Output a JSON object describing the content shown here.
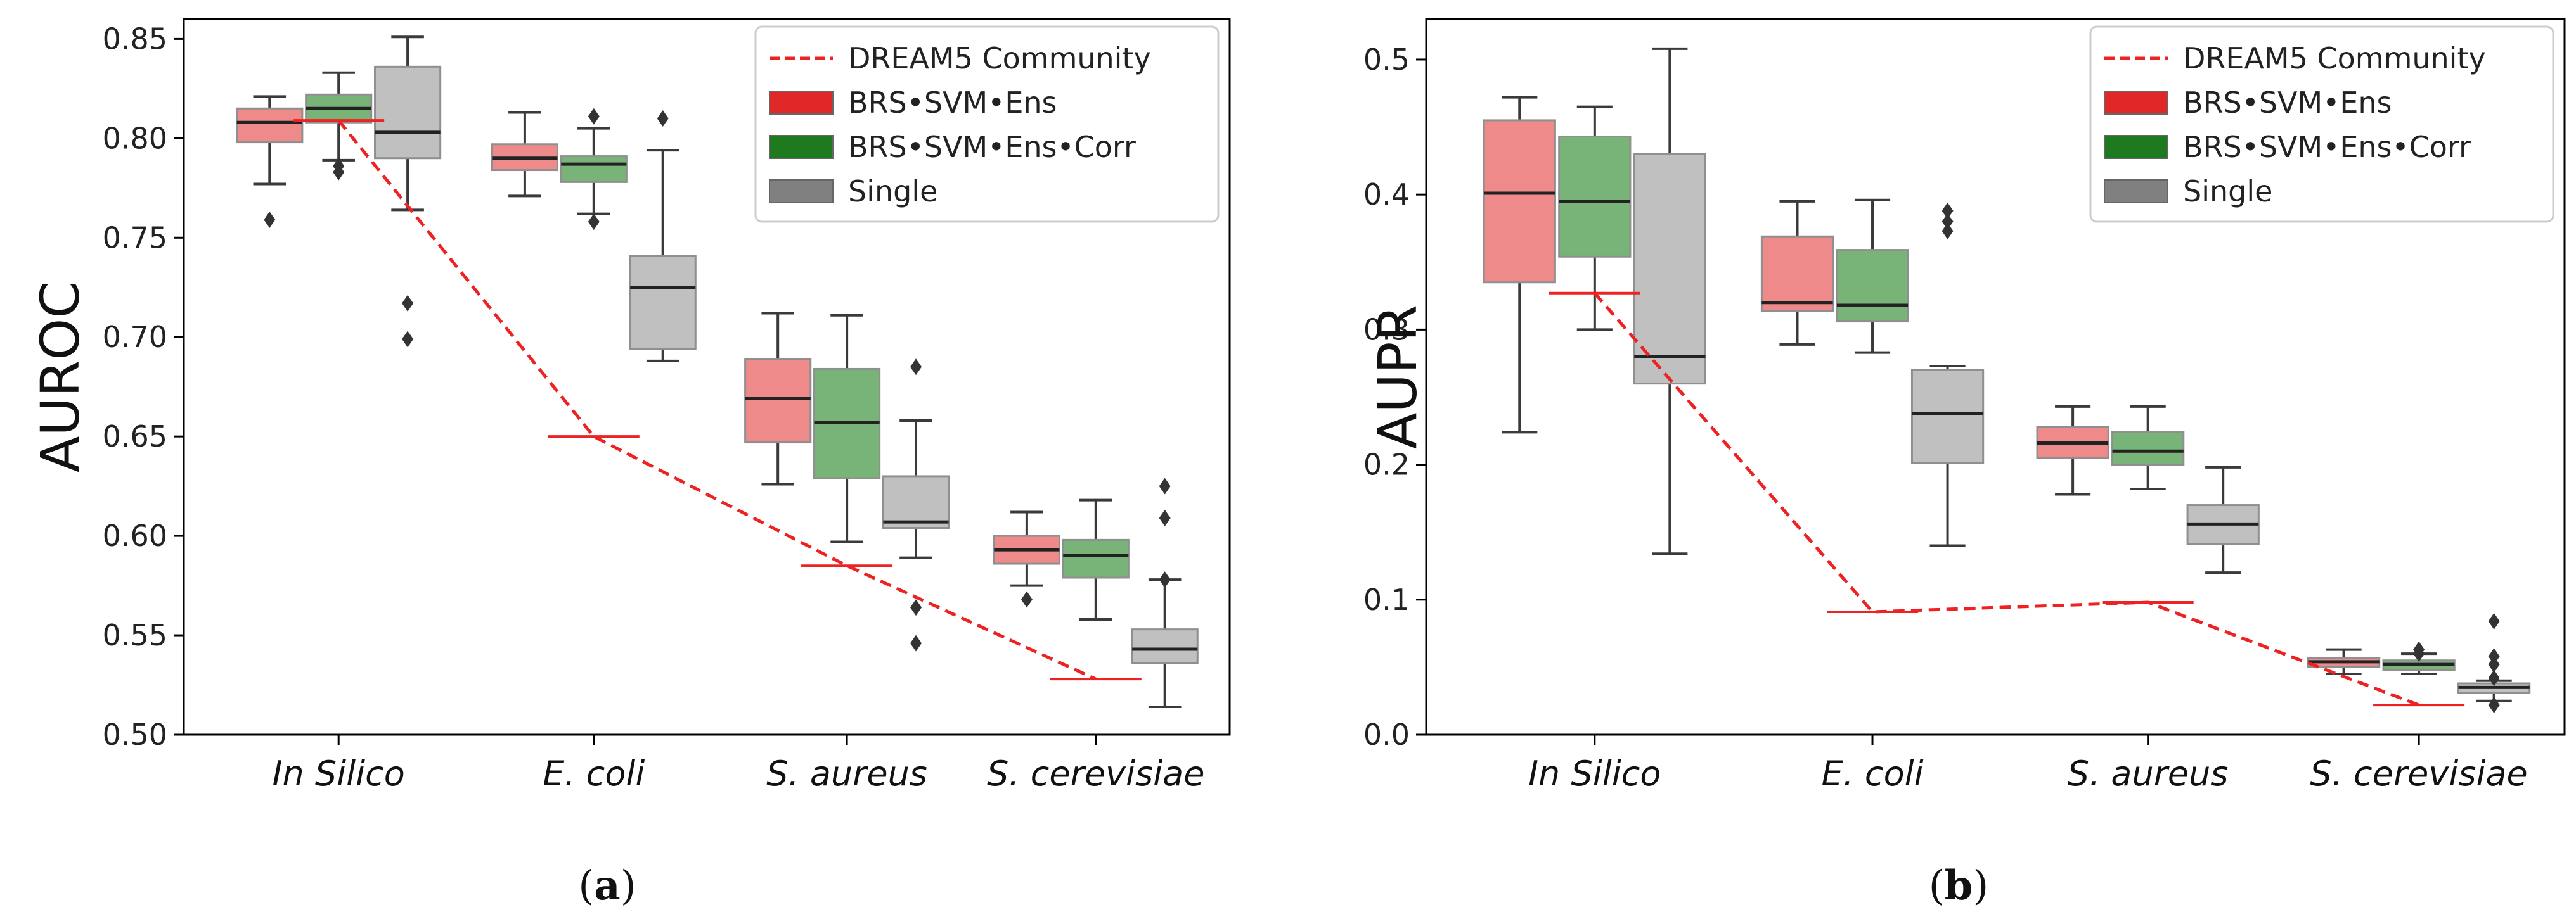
{
  "chart_data": [
    {
      "type": "box",
      "panel_label": "a",
      "title": "",
      "ylabel": "AUROC",
      "xlabel": "",
      "ylim": [
        0.5,
        0.86
      ],
      "yticks": [
        0.5,
        0.55,
        0.6,
        0.65,
        0.7,
        0.75,
        0.8,
        0.85
      ],
      "yticklabels": [
        "0.50",
        "0.55",
        "0.60",
        "0.65",
        "0.70",
        "0.75",
        "0.80",
        "0.85"
      ],
      "categories": [
        "In Silico",
        "E. coli",
        "S. aureus",
        "S. cerevisiae"
      ],
      "legend": {
        "position": "top-right",
        "entries": [
          {
            "name": "DREAM5 Community",
            "type": "dashed-line"
          },
          {
            "name": "BRS•SVM•Ens",
            "type": "patch",
            "color": "#e02828"
          },
          {
            "name": "BRS•SVM•Ens•Corr",
            "type": "patch",
            "color": "#1f7a1f"
          },
          {
            "name": "Single",
            "type": "patch",
            "color": "#808080"
          }
        ]
      },
      "reference": {
        "name": "DREAM5 Community",
        "color": "#ee2222",
        "values": [
          0.809,
          0.65,
          0.585,
          0.528
        ]
      },
      "series": [
        {
          "name": "BRS•SVM•Ens",
          "color": "#ee8a8a",
          "boxes": [
            {
              "q1": 0.798,
              "median": 0.808,
              "q3": 0.815,
              "whislo": 0.777,
              "whishi": 0.821,
              "fliers": [
                0.759
              ]
            },
            {
              "q1": 0.784,
              "median": 0.79,
              "q3": 0.797,
              "whislo": 0.771,
              "whishi": 0.813,
              "fliers": []
            },
            {
              "q1": 0.647,
              "median": 0.669,
              "q3": 0.689,
              "whislo": 0.626,
              "whishi": 0.712,
              "fliers": []
            },
            {
              "q1": 0.586,
              "median": 0.593,
              "q3": 0.6,
              "whislo": 0.575,
              "whishi": 0.612,
              "fliers": [
                0.568
              ]
            }
          ]
        },
        {
          "name": "BRS•SVM•Ens•Corr",
          "color": "#78b478",
          "boxes": [
            {
              "q1": 0.808,
              "median": 0.815,
              "q3": 0.822,
              "whislo": 0.789,
              "whishi": 0.833,
              "fliers": [
                0.783,
                0.786
              ]
            },
            {
              "q1": 0.778,
              "median": 0.787,
              "q3": 0.791,
              "whislo": 0.762,
              "whishi": 0.805,
              "fliers": [
                0.758,
                0.811
              ]
            },
            {
              "q1": 0.629,
              "median": 0.657,
              "q3": 0.684,
              "whislo": 0.597,
              "whishi": 0.711,
              "fliers": []
            },
            {
              "q1": 0.579,
              "median": 0.59,
              "q3": 0.598,
              "whislo": 0.558,
              "whishi": 0.618,
              "fliers": []
            }
          ]
        },
        {
          "name": "Single",
          "color": "#c0c0c0",
          "boxes": [
            {
              "q1": 0.79,
              "median": 0.803,
              "q3": 0.836,
              "whislo": 0.764,
              "whishi": 0.851,
              "fliers": [
                0.699,
                0.717
              ]
            },
            {
              "q1": 0.694,
              "median": 0.725,
              "q3": 0.741,
              "whislo": 0.688,
              "whishi": 0.794,
              "fliers": [
                0.81
              ]
            },
            {
              "q1": 0.604,
              "median": 0.607,
              "q3": 0.63,
              "whislo": 0.589,
              "whishi": 0.658,
              "fliers": [
                0.546,
                0.564,
                0.685
              ]
            },
            {
              "q1": 0.536,
              "median": 0.543,
              "q3": 0.553,
              "whislo": 0.514,
              "whishi": 0.578,
              "fliers": [
                0.578,
                0.609,
                0.625
              ]
            }
          ]
        }
      ]
    },
    {
      "type": "box",
      "panel_label": "b",
      "title": "",
      "ylabel": "AUPR",
      "xlabel": "",
      "ylim": [
        0.0,
        0.53
      ],
      "yticks": [
        0.0,
        0.1,
        0.2,
        0.3,
        0.4,
        0.5
      ],
      "yticklabels": [
        "0.0",
        "0.1",
        "0.2",
        "0.3",
        "0.4",
        "0.5"
      ],
      "categories": [
        "In Silico",
        "E. coli",
        "S. aureus",
        "S. cerevisiae"
      ],
      "legend": {
        "position": "top-right",
        "entries": [
          {
            "name": "DREAM5 Community",
            "type": "dashed-line"
          },
          {
            "name": "BRS•SVM•Ens",
            "type": "patch",
            "color": "#e02828"
          },
          {
            "name": "BRS•SVM•Ens•Corr",
            "type": "patch",
            "color": "#1f7a1f"
          },
          {
            "name": "Single",
            "type": "patch",
            "color": "#808080"
          }
        ]
      },
      "reference": {
        "name": "DREAM5 Community",
        "color": "#ee2222",
        "values": [
          0.327,
          0.091,
          0.098,
          0.022
        ]
      },
      "series": [
        {
          "name": "BRS•SVM•Ens",
          "color": "#ee8a8a",
          "boxes": [
            {
              "q1": 0.335,
              "median": 0.401,
              "q3": 0.455,
              "whislo": 0.224,
              "whishi": 0.472,
              "fliers": []
            },
            {
              "q1": 0.314,
              "median": 0.32,
              "q3": 0.369,
              "whislo": 0.289,
              "whishi": 0.395,
              "fliers": []
            },
            {
              "q1": 0.205,
              "median": 0.216,
              "q3": 0.228,
              "whislo": 0.178,
              "whishi": 0.243,
              "fliers": []
            },
            {
              "q1": 0.05,
              "median": 0.054,
              "q3": 0.057,
              "whislo": 0.045,
              "whishi": 0.063,
              "fliers": []
            }
          ]
        },
        {
          "name": "BRS•SVM•Ens•Corr",
          "color": "#78b478",
          "boxes": [
            {
              "q1": 0.354,
              "median": 0.395,
              "q3": 0.443,
              "whislo": 0.3,
              "whishi": 0.465,
              "fliers": []
            },
            {
              "q1": 0.306,
              "median": 0.318,
              "q3": 0.359,
              "whislo": 0.283,
              "whishi": 0.396,
              "fliers": []
            },
            {
              "q1": 0.2,
              "median": 0.21,
              "q3": 0.224,
              "whislo": 0.182,
              "whishi": 0.243,
              "fliers": []
            },
            {
              "q1": 0.048,
              "median": 0.052,
              "q3": 0.055,
              "whislo": 0.045,
              "whishi": 0.06,
              "fliers": [
                0.06,
                0.063
              ]
            }
          ]
        },
        {
          "name": "Single",
          "color": "#c0c0c0",
          "boxes": [
            {
              "q1": 0.26,
              "median": 0.28,
              "q3": 0.43,
              "whislo": 0.134,
              "whishi": 0.508,
              "fliers": []
            },
            {
              "q1": 0.201,
              "median": 0.238,
              "q3": 0.27,
              "whislo": 0.14,
              "whishi": 0.273,
              "fliers": [
                0.373,
                0.38,
                0.388
              ]
            },
            {
              "q1": 0.141,
              "median": 0.156,
              "q3": 0.17,
              "whislo": 0.12,
              "whishi": 0.198,
              "fliers": []
            },
            {
              "q1": 0.031,
              "median": 0.035,
              "q3": 0.038,
              "whislo": 0.025,
              "whishi": 0.04,
              "fliers": [
                0.022,
                0.042,
                0.052,
                0.058,
                0.084
              ]
            }
          ]
        }
      ]
    }
  ]
}
